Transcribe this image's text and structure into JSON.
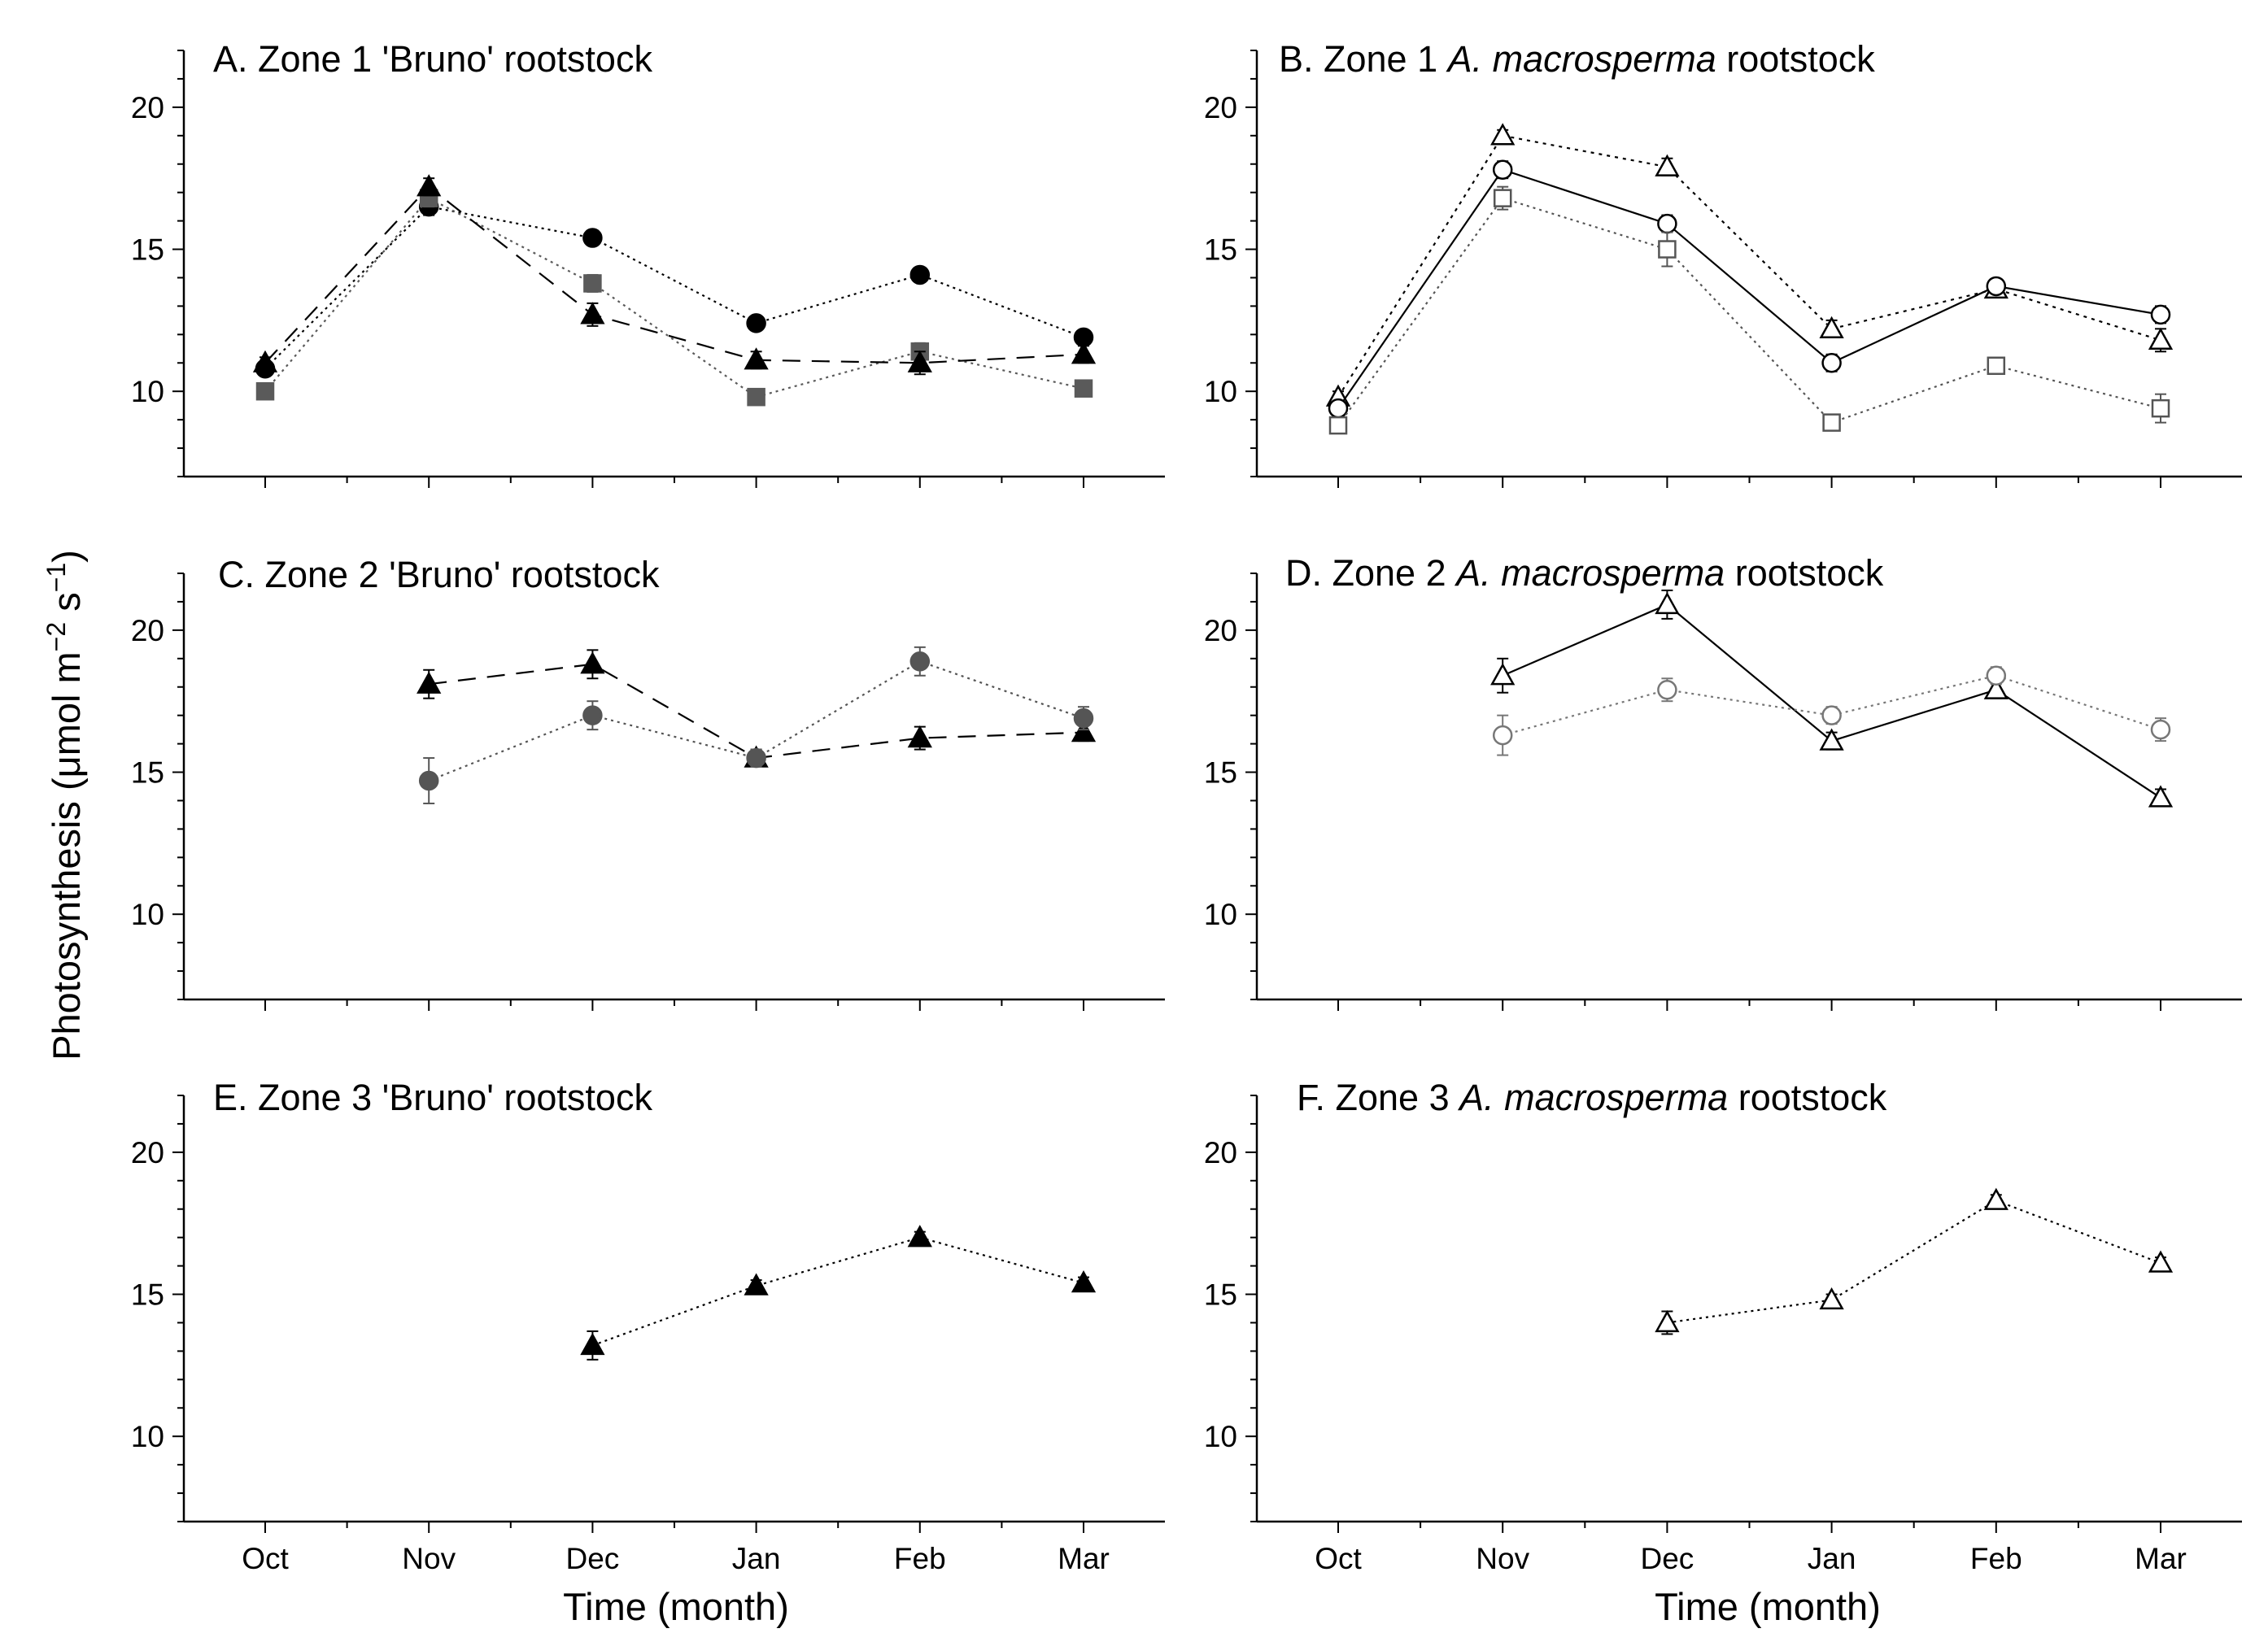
{
  "figure": {
    "ylabel_prefix": "Photosynthesis (",
    "ylabel_mu": "μ",
    "ylabel_unit": "mol m",
    "ylabel_exp1": "−2",
    "ylabel_mid": " s",
    "ylabel_exp2": "−1",
    "ylabel_suffix": ")",
    "xlabel": "Time (month)"
  },
  "chart_data": [
    {
      "id": "A",
      "type": "line",
      "title_pre": "A. Zone 1 'Bruno' rootstock",
      "title_em": "",
      "title_post": "",
      "categories": [
        "Oct",
        "Nov",
        "Dec",
        "Jan",
        "Feb",
        "Mar"
      ],
      "ylim": [
        7,
        22
      ],
      "yticks": [
        10,
        15,
        20
      ],
      "show_x_ticklabels": false,
      "series": [
        {
          "name": "circle",
          "marker": "circle",
          "filled": true,
          "color": "#000000",
          "dash": "3,5",
          "values": [
            10.8,
            16.5,
            15.4,
            12.4,
            14.1,
            11.9
          ],
          "errors": [
            0.2,
            0.3,
            0.2,
            0.2,
            0.2,
            0.2
          ]
        },
        {
          "name": "square",
          "marker": "square",
          "filled": true,
          "color": "#5a5a5a",
          "dash": "3,5",
          "values": [
            10.0,
            16.8,
            13.8,
            9.8,
            11.4,
            10.1
          ],
          "errors": [
            0.2,
            0.3,
            0.3,
            0.2,
            0.3,
            0.2
          ]
        },
        {
          "name": "triangle",
          "marker": "triangle",
          "filled": true,
          "color": "#000000",
          "dash": "22,14",
          "values": [
            11.0,
            17.2,
            12.7,
            11.1,
            11.0,
            11.3
          ],
          "errors": [
            0.2,
            0.3,
            0.4,
            0.3,
            0.4,
            0.3
          ]
        }
      ]
    },
    {
      "id": "B",
      "type": "line",
      "title_pre": "B. Zone 1 ",
      "title_em": "A. macrosperma",
      "title_post": " rootstock",
      "categories": [
        "Oct",
        "Nov",
        "Dec",
        "Jan",
        "Feb",
        "Mar"
      ],
      "ylim": [
        7,
        22
      ],
      "yticks": [
        10,
        15,
        20
      ],
      "show_x_ticklabels": false,
      "series": [
        {
          "name": "triangle",
          "marker": "triangle",
          "filled": false,
          "color": "#000000",
          "dash": "4,6",
          "values": [
            9.8,
            19.0,
            17.9,
            12.2,
            13.6,
            11.8
          ],
          "errors": [
            0.2,
            0.2,
            0.3,
            0.3,
            0.3,
            0.4
          ]
        },
        {
          "name": "circle",
          "marker": "circle",
          "filled": false,
          "color": "#000000",
          "dash": "none",
          "values": [
            9.4,
            17.8,
            15.9,
            11.0,
            13.7,
            12.7
          ],
          "errors": [
            0.2,
            0.3,
            0.3,
            0.3,
            0.2,
            0.3
          ]
        },
        {
          "name": "square",
          "marker": "square",
          "filled": false,
          "color": "#555555",
          "dash": "3,5",
          "values": [
            8.8,
            16.8,
            15.0,
            8.9,
            10.9,
            9.4
          ],
          "errors": [
            0.2,
            0.4,
            0.6,
            0.2,
            0.2,
            0.5
          ]
        }
      ]
    },
    {
      "id": "C",
      "type": "line",
      "title_pre": "C. Zone 2 'Bruno' rootstock",
      "title_em": "",
      "title_post": "",
      "categories": [
        "Oct",
        "Nov",
        "Dec",
        "Jan",
        "Feb",
        "Mar"
      ],
      "ylim": [
        7,
        22
      ],
      "yticks": [
        10,
        15,
        20
      ],
      "show_x_ticklabels": false,
      "series": [
        {
          "name": "triangle",
          "marker": "triangle",
          "filled": true,
          "color": "#000000",
          "dash": "22,14",
          "values": [
            null,
            18.1,
            18.8,
            15.5,
            16.2,
            16.4
          ],
          "errors": [
            0,
            0.5,
            0.5,
            0.3,
            0.4,
            0.3
          ]
        },
        {
          "name": "circle",
          "marker": "circle",
          "filled": true,
          "color": "#555555",
          "dash": "3,5",
          "values": [
            null,
            14.7,
            17.0,
            15.5,
            18.9,
            16.9
          ],
          "errors": [
            0,
            0.8,
            0.5,
            0.3,
            0.5,
            0.4
          ]
        }
      ]
    },
    {
      "id": "D",
      "type": "line",
      "title_pre": "D. Zone 2 ",
      "title_em": "A. macrosperma",
      "title_post": " rootstock",
      "categories": [
        "Oct",
        "Nov",
        "Dec",
        "Jan",
        "Feb",
        "Mar"
      ],
      "ylim": [
        7,
        22
      ],
      "yticks": [
        10,
        15,
        20
      ],
      "show_x_ticklabels": false,
      "series": [
        {
          "name": "triangle",
          "marker": "triangle",
          "filled": false,
          "color": "#000000",
          "dash": "none",
          "values": [
            null,
            18.4,
            20.9,
            16.1,
            17.9,
            14.1
          ],
          "errors": [
            0,
            0.6,
            0.5,
            0.3,
            0.3,
            0.3
          ]
        },
        {
          "name": "circle",
          "marker": "circle",
          "filled": false,
          "color": "#777777",
          "dash": "3,5",
          "values": [
            null,
            16.3,
            17.9,
            17.0,
            18.4,
            16.5
          ],
          "errors": [
            0,
            0.7,
            0.4,
            0.3,
            0.3,
            0.4
          ]
        }
      ]
    },
    {
      "id": "E",
      "type": "line",
      "title_pre": "E. Zone 3 'Bruno' rootstock",
      "title_em": "",
      "title_post": "",
      "categories": [
        "Oct",
        "Nov",
        "Dec",
        "Jan",
        "Feb",
        "Mar"
      ],
      "ylim": [
        7,
        22
      ],
      "yticks": [
        10,
        15,
        20
      ],
      "show_x_ticklabels": true,
      "series": [
        {
          "name": "triangle",
          "marker": "triangle",
          "filled": true,
          "color": "#000000",
          "dash": "3,5",
          "values": [
            null,
            null,
            13.2,
            15.3,
            17.0,
            15.4
          ],
          "errors": [
            0,
            0,
            0.5,
            0.2,
            0.2,
            0.2
          ]
        }
      ]
    },
    {
      "id": "F",
      "type": "line",
      "title_pre": "F. Zone 3 ",
      "title_em": "A. macrosperma",
      "title_post": " rootstock",
      "categories": [
        "Oct",
        "Nov",
        "Dec",
        "Jan",
        "Feb",
        "Mar"
      ],
      "ylim": [
        7,
        22
      ],
      "yticks": [
        10,
        15,
        20
      ],
      "show_x_ticklabels": true,
      "series": [
        {
          "name": "triangle",
          "marker": "triangle",
          "filled": false,
          "color": "#000000",
          "dash": "3,5",
          "values": [
            null,
            null,
            14.0,
            14.8,
            18.3,
            16.1
          ],
          "errors": [
            0,
            0,
            0.4,
            0.2,
            0.2,
            0.2
          ]
        }
      ]
    }
  ]
}
